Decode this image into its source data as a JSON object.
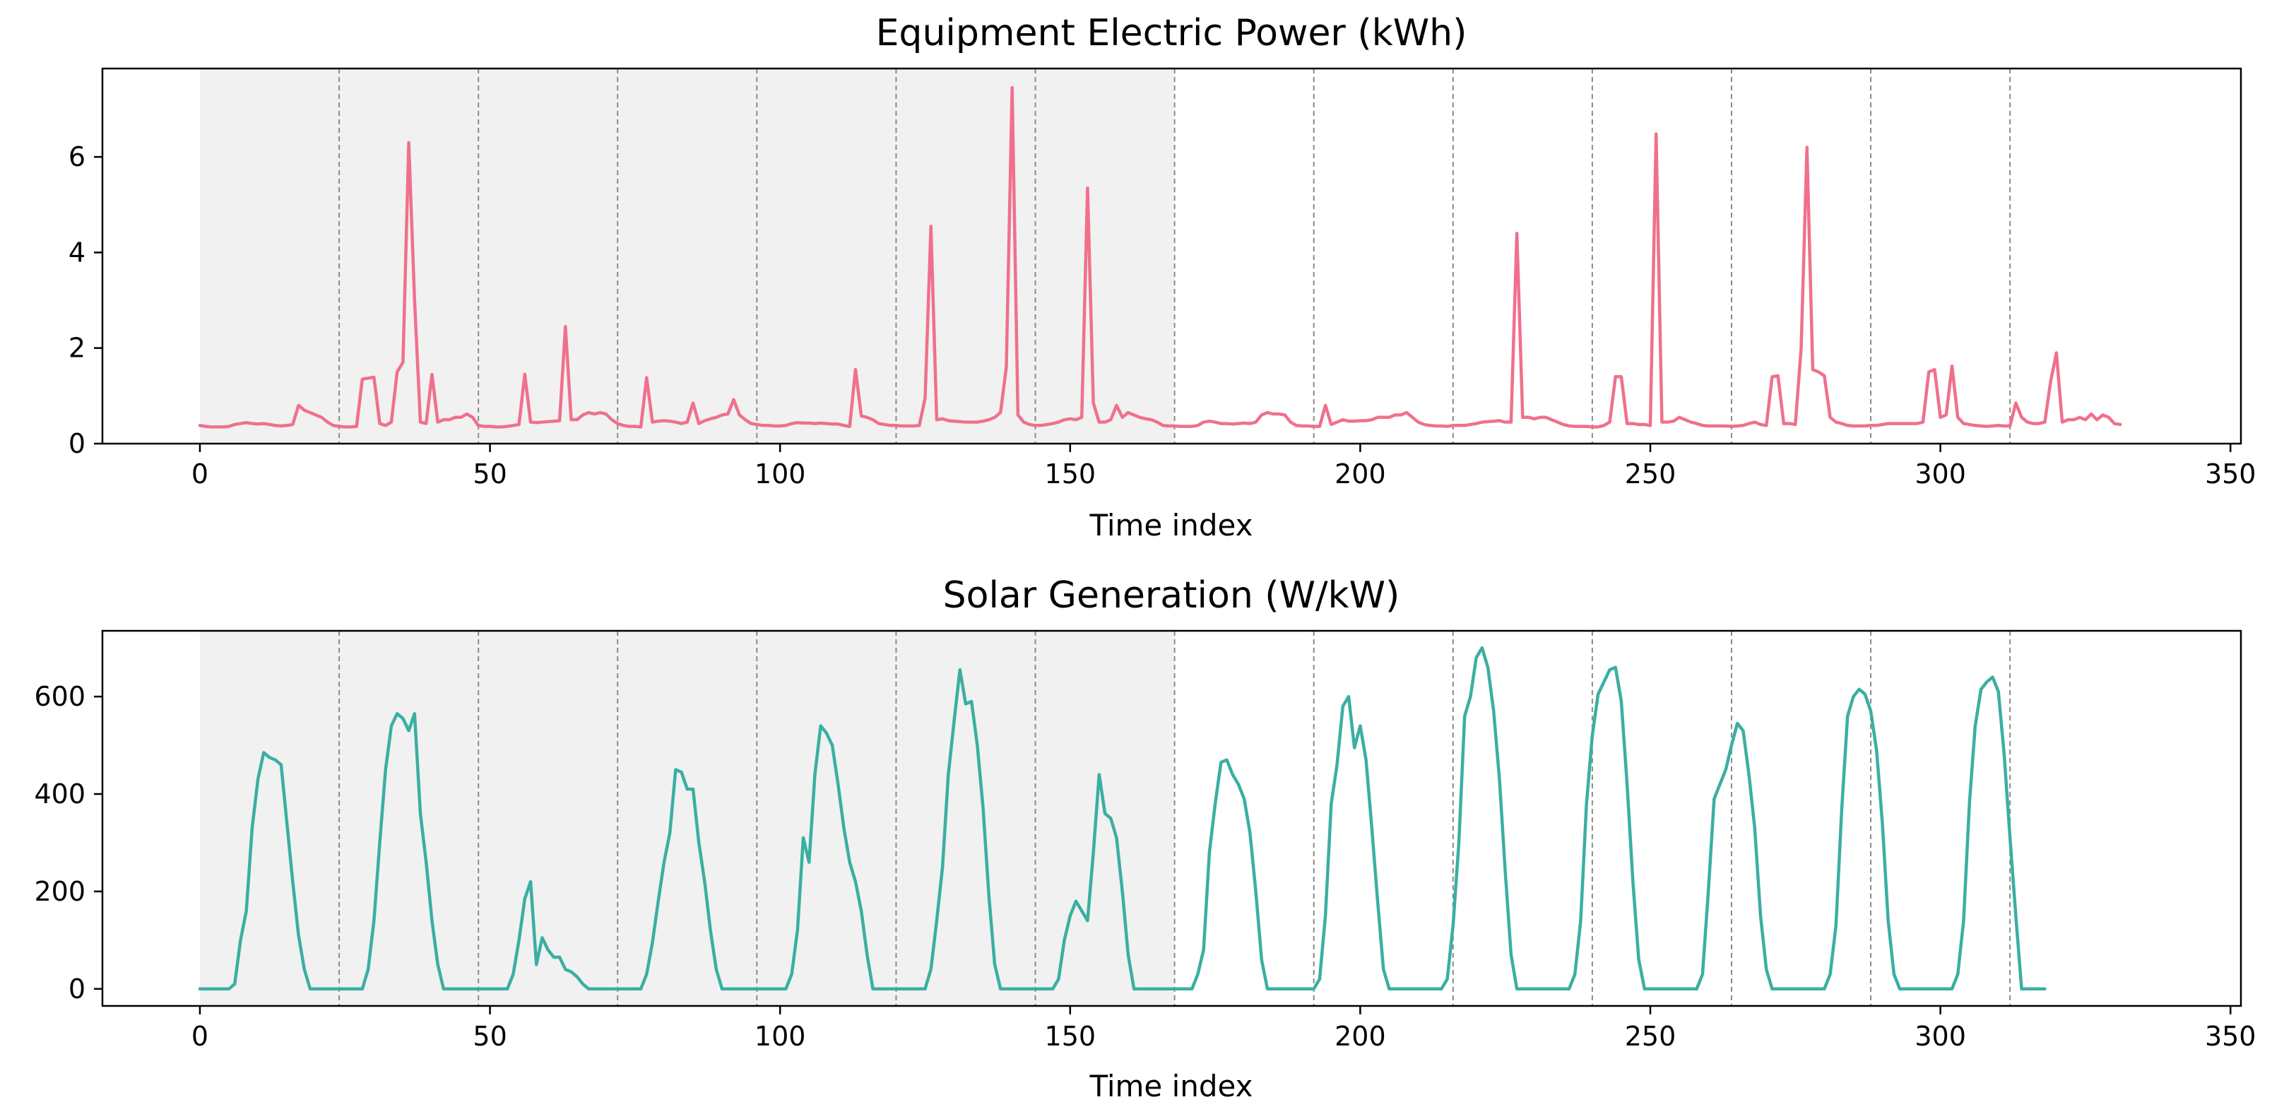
{
  "chart_data": [
    {
      "type": "line",
      "title": "Equipment Electric Power (kWh)",
      "xlabel": "Time index",
      "ylabel": "",
      "xlim": [
        -16.8,
        351.8
      ],
      "ylim": [
        0,
        7.85
      ],
      "xticks": [
        0,
        50,
        100,
        150,
        200,
        250,
        300,
        350
      ],
      "yticks": [
        0,
        2,
        4,
        6
      ],
      "grid": false,
      "shaded_region": [
        0,
        168
      ],
      "day_boundaries": [
        24,
        48,
        72,
        96,
        120,
        144,
        168,
        192,
        216,
        240,
        264,
        288,
        312
      ],
      "color": "#f0708c",
      "series": [
        {
          "name": "Equipment Electric Power",
          "x_start": 0,
          "values": [
            0.38,
            0.36,
            0.35,
            0.35,
            0.35,
            0.36,
            0.4,
            0.42,
            0.44,
            0.42,
            0.41,
            0.42,
            0.4,
            0.38,
            0.37,
            0.38,
            0.4,
            0.8,
            0.7,
            0.65,
            0.6,
            0.55,
            0.45,
            0.38,
            0.36,
            0.35,
            0.35,
            0.36,
            1.35,
            1.37,
            1.39,
            0.42,
            0.38,
            0.45,
            1.5,
            1.7,
            6.3,
            3.0,
            0.45,
            0.42,
            1.45,
            0.45,
            0.5,
            0.5,
            0.55,
            0.55,
            0.62,
            0.55,
            0.38,
            0.36,
            0.36,
            0.35,
            0.35,
            0.36,
            0.38,
            0.4,
            1.45,
            0.45,
            0.44,
            0.45,
            0.46,
            0.47,
            0.48,
            2.45,
            0.5,
            0.5,
            0.6,
            0.65,
            0.62,
            0.65,
            0.62,
            0.5,
            0.42,
            0.38,
            0.36,
            0.36,
            0.35,
            1.38,
            0.45,
            0.47,
            0.48,
            0.47,
            0.45,
            0.42,
            0.45,
            0.85,
            0.42,
            0.48,
            0.52,
            0.55,
            0.6,
            0.62,
            0.92,
            0.6,
            0.5,
            0.42,
            0.4,
            0.38,
            0.38,
            0.37,
            0.37,
            0.38,
            0.42,
            0.44,
            0.43,
            0.43,
            0.42,
            0.43,
            0.42,
            0.41,
            0.41,
            0.38,
            0.36,
            1.55,
            0.58,
            0.55,
            0.5,
            0.42,
            0.4,
            0.38,
            0.38,
            0.37,
            0.37,
            0.37,
            0.38,
            0.95,
            4.55,
            0.5,
            0.52,
            0.48,
            0.47,
            0.46,
            0.45,
            0.45,
            0.45,
            0.47,
            0.5,
            0.55,
            0.65,
            1.6,
            7.45,
            0.6,
            0.45,
            0.4,
            0.38,
            0.38,
            0.4,
            0.42,
            0.45,
            0.5,
            0.52,
            0.5,
            0.55,
            5.35,
            0.85,
            0.45,
            0.45,
            0.5,
            0.8,
            0.55,
            0.65,
            0.6,
            0.55,
            0.52,
            0.5,
            0.45,
            0.38,
            0.37,
            0.37,
            0.36,
            0.36,
            0.36,
            0.38,
            0.45,
            0.47,
            0.45,
            0.42,
            0.42,
            0.41,
            0.42,
            0.43,
            0.42,
            0.45,
            0.6,
            0.65,
            0.62,
            0.62,
            0.6,
            0.45,
            0.38,
            0.37,
            0.37,
            0.36,
            0.36,
            0.8,
            0.4,
            0.45,
            0.5,
            0.47,
            0.47,
            0.48,
            0.48,
            0.5,
            0.55,
            0.55,
            0.55,
            0.6,
            0.6,
            0.65,
            0.55,
            0.45,
            0.4,
            0.38,
            0.37,
            0.37,
            0.36,
            0.38,
            0.38,
            0.38,
            0.4,
            0.42,
            0.45,
            0.46,
            0.47,
            0.48,
            0.45,
            0.45,
            4.4,
            0.55,
            0.55,
            0.52,
            0.55,
            0.55,
            0.5,
            0.45,
            0.4,
            0.37,
            0.36,
            0.36,
            0.36,
            0.35,
            0.35,
            0.38,
            0.45,
            1.4,
            1.4,
            0.42,
            0.42,
            0.4,
            0.4,
            0.38,
            6.48,
            0.45,
            0.45,
            0.47,
            0.55,
            0.5,
            0.45,
            0.42,
            0.38,
            0.37,
            0.37,
            0.37,
            0.37,
            0.36,
            0.37,
            0.38,
            0.42,
            0.45,
            0.4,
            0.38,
            1.4,
            1.42,
            0.42,
            0.42,
            0.4,
            2.0,
            6.2,
            1.55,
            1.5,
            1.42,
            0.55,
            0.45,
            0.42,
            0.38,
            0.37,
            0.37,
            0.37,
            0.38,
            0.38,
            0.4,
            0.42,
            0.42,
            0.42,
            0.42,
            0.42,
            0.42,
            0.45,
            1.5,
            1.55,
            0.55,
            0.6,
            1.62,
            0.55,
            0.42,
            0.4,
            0.38,
            0.37,
            0.36,
            0.37,
            0.38,
            0.37,
            0.37,
            0.85,
            0.55,
            0.45,
            0.42,
            0.42,
            0.45,
            1.3,
            1.9,
            0.45,
            0.5,
            0.5,
            0.55,
            0.5,
            0.62,
            0.5,
            0.6,
            0.55,
            0.42,
            0.4
          ]
        }
      ]
    },
    {
      "type": "line",
      "title": "Solar Generation (W/kW)",
      "xlabel": "Time index",
      "ylabel": "",
      "xlim": [
        -16.8,
        351.8
      ],
      "ylim": [
        -35,
        735
      ],
      "xticks": [
        0,
        50,
        100,
        150,
        200,
        250,
        300,
        350
      ],
      "yticks": [
        0,
        200,
        400,
        600
      ],
      "grid": false,
      "shaded_region": [
        0,
        168
      ],
      "day_boundaries": [
        24,
        48,
        72,
        96,
        120,
        144,
        168,
        192,
        216,
        240,
        264,
        288,
        312
      ],
      "color": "#3aafa2",
      "series": [
        {
          "name": "Solar Generation",
          "x_start": 0,
          "values": [
            0,
            0,
            0,
            0,
            0,
            0,
            10,
            100,
            160,
            330,
            430,
            485,
            475,
            470,
            460,
            340,
            220,
            110,
            40,
            0,
            0,
            0,
            0,
            0,
            0,
            0,
            0,
            0,
            0,
            40,
            140,
            300,
            450,
            540,
            565,
            555,
            530,
            565,
            360,
            260,
            140,
            50,
            0,
            0,
            0,
            0,
            0,
            0,
            0,
            0,
            0,
            0,
            0,
            0,
            30,
            100,
            185,
            220,
            50,
            105,
            80,
            65,
            65,
            40,
            35,
            25,
            10,
            0,
            0,
            0,
            0,
            0,
            0,
            0,
            0,
            0,
            0,
            30,
            95,
            180,
            260,
            320,
            450,
            445,
            410,
            410,
            300,
            220,
            120,
            40,
            0,
            0,
            0,
            0,
            0,
            0,
            0,
            0,
            0,
            0,
            0,
            0,
            30,
            120,
            310,
            260,
            440,
            540,
            525,
            500,
            420,
            330,
            260,
            220,
            160,
            70,
            0,
            0,
            0,
            0,
            0,
            0,
            0,
            0,
            0,
            0,
            40,
            140,
            250,
            440,
            550,
            655,
            585,
            590,
            500,
            370,
            190,
            50,
            0,
            0,
            0,
            0,
            0,
            0,
            0,
            0,
            0,
            0,
            20,
            100,
            150,
            180,
            160,
            140,
            280,
            440,
            360,
            350,
            310,
            200,
            70,
            0,
            0,
            0,
            0,
            0,
            0,
            0,
            0,
            0,
            0,
            0,
            30,
            80,
            280,
            380,
            465,
            470,
            440,
            420,
            390,
            320,
            200,
            60,
            0,
            0,
            0,
            0,
            0,
            0,
            0,
            0,
            0,
            20,
            150,
            380,
            460,
            580,
            600,
            495,
            540,
            470,
            330,
            180,
            40,
            0,
            0,
            0,
            0,
            0,
            0,
            0,
            0,
            0,
            0,
            20,
            130,
            300,
            560,
            600,
            680,
            700,
            660,
            570,
            430,
            240,
            70,
            0,
            0,
            0,
            0,
            0,
            0,
            0,
            0,
            0,
            0,
            30,
            140,
            380,
            520,
            605,
            630,
            655,
            660,
            590,
            420,
            220,
            60,
            0,
            0,
            0,
            0,
            0,
            0,
            0,
            0,
            0,
            0,
            30,
            200,
            390,
            420,
            450,
            500,
            545,
            530,
            440,
            330,
            150,
            40,
            0,
            0,
            0,
            0,
            0,
            0,
            0,
            0,
            0,
            0,
            30,
            130,
            370,
            560,
            600,
            615,
            605,
            570,
            490,
            340,
            140,
            30,
            0,
            0,
            0,
            0,
            0,
            0,
            0,
            0,
            0,
            0,
            30,
            140,
            380,
            540,
            615,
            630,
            640,
            610,
            480,
            310,
            150,
            0,
            0,
            0,
            0,
            0
          ]
        }
      ]
    }
  ]
}
